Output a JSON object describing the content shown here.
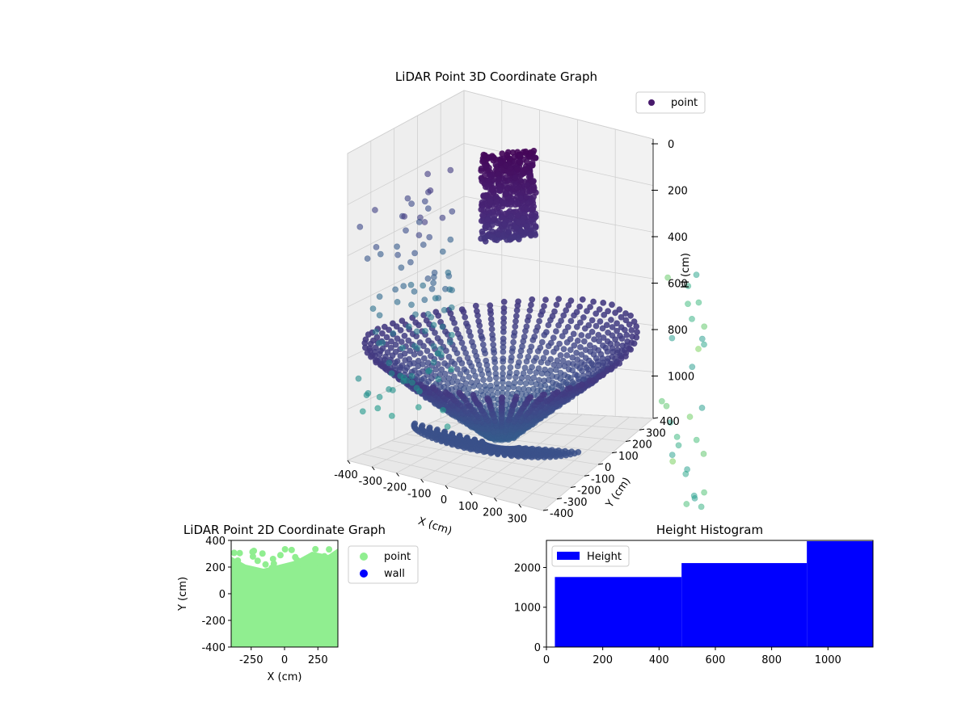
{
  "chart_data": [
    {
      "type": "scatter",
      "title": "LiDAR Point 3D Coordinate Graph",
      "xlabel": "X (cm)",
      "ylabel": "Y (cm)",
      "zlabel": "H (cm)",
      "xticks": [
        -400,
        -300,
        -200,
        -100,
        0,
        100,
        200,
        300
      ],
      "yticks": [
        -400,
        -300,
        -200,
        -100,
        0,
        100,
        200,
        300,
        400
      ],
      "zticks": [
        0,
        200,
        400,
        600,
        800,
        1000
      ],
      "zlim_note": "H axis inverted (0 at top)",
      "legend": {
        "position": "top-right",
        "entries": [
          "point"
        ]
      },
      "colormap": "viridis",
      "series": [
        {
          "name": "point",
          "description": "LiDAR points colored by height"
        }
      ],
      "grid": true
    },
    {
      "type": "scatter",
      "title": "LiDAR Point 2D Coordinate Graph",
      "xlabel": "X (cm)",
      "ylabel": "Y (cm)",
      "xlim": [
        -400,
        400
      ],
      "ylim": [
        -400,
        400
      ],
      "xticks": [
        -250,
        0,
        250
      ],
      "yticks": [
        -400,
        -200,
        0,
        200,
        400
      ],
      "legend": {
        "position": "outside-right",
        "entries": [
          "point",
          "wall"
        ]
      },
      "series": [
        {
          "name": "point",
          "color": "#90ee90"
        },
        {
          "name": "wall",
          "color": "#0000ff"
        }
      ]
    },
    {
      "type": "bar",
      "title": "Height Histogram",
      "xlim": [
        0,
        1160
      ],
      "ylim": [
        0,
        2680
      ],
      "xticks": [
        0,
        200,
        400,
        600,
        800,
        1000
      ],
      "yticks": [
        0,
        1000,
        2000
      ],
      "legend": {
        "position": "top-left",
        "entries": [
          "Height"
        ]
      },
      "bins": [
        {
          "x0": 30,
          "x1": 480,
          "value": 1760
        },
        {
          "x0": 480,
          "x1": 925,
          "value": 2110
        },
        {
          "x0": 925,
          "x1": 1160,
          "value": 2660
        }
      ],
      "series": [
        {
          "name": "Height",
          "color": "#0000ff"
        }
      ]
    }
  ]
}
